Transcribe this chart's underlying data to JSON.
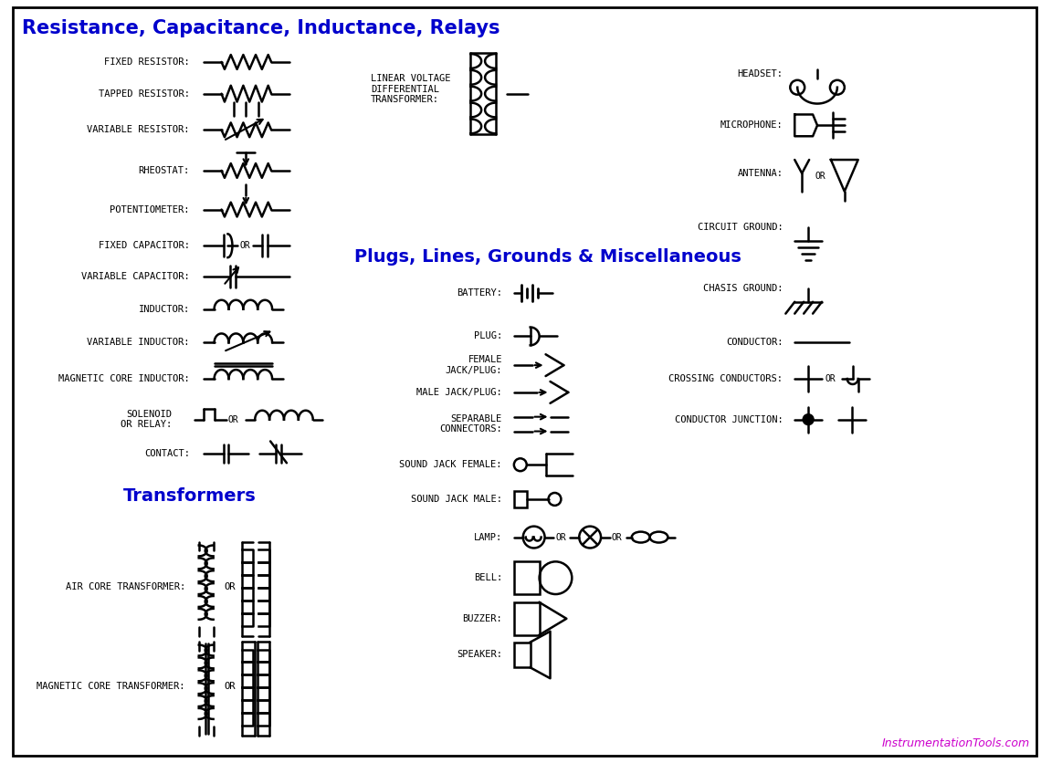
{
  "title1": "Resistance, Capacitance, Inductance, Relays",
  "title2": "Plugs, Lines, Grounds & Miscellaneous",
  "title3": "Transformers",
  "title_color": "#0000CC",
  "bg_color": "#FFFFFF",
  "border_color": "#000000",
  "symbol_color": "#000000",
  "text_color": "#000000",
  "watermark": "InstrumentationTools.com",
  "watermark_color": "#CC00CC",
  "figsize": [
    11.4,
    8.36
  ],
  "dpi": 100
}
